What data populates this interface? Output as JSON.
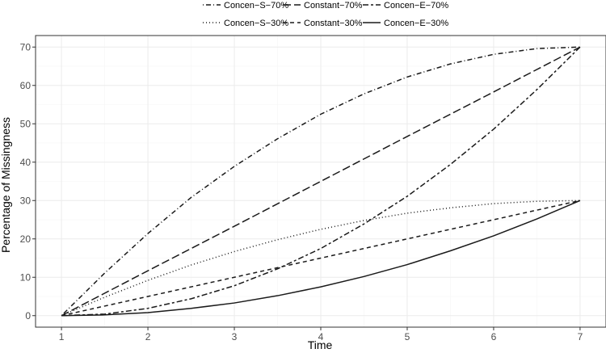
{
  "chart_data": {
    "type": "line",
    "xlabel": "Time",
    "ylabel": "Percentage of Missingness",
    "xlim": [
      0.7,
      7.3
    ],
    "ylim": [
      -3,
      73
    ],
    "x_ticks": [
      1,
      2,
      3,
      4,
      5,
      6,
      7
    ],
    "y_ticks": [
      0,
      10,
      20,
      30,
      40,
      50,
      60,
      70
    ],
    "grid": true,
    "legend_position": "top",
    "series": [
      {
        "name": "Concen−S−70%",
        "dash": "dotdash",
        "x": [
          1,
          1.5,
          2,
          2.5,
          3,
          3.5,
          4,
          4.5,
          5,
          5.5,
          6,
          6.5,
          7
        ],
        "y": [
          0,
          11.1,
          21.4,
          30.8,
          38.9,
          46.1,
          52.5,
          57.8,
          62.2,
          65.6,
          68.1,
          69.6,
          70
        ]
      },
      {
        "name": "Constant−70%",
        "dash": "longdash",
        "x": [
          1,
          2,
          3,
          4,
          5,
          6,
          7
        ],
        "y": [
          0,
          11.7,
          23.3,
          35.0,
          46.7,
          58.3,
          70
        ]
      },
      {
        "name": "Concen−E−70%",
        "dash": "twodash",
        "x": [
          1,
          1.5,
          2,
          2.5,
          3,
          3.5,
          4,
          4.5,
          5,
          5.5,
          6,
          6.5,
          7
        ],
        "y": [
          0,
          0.4,
          1.9,
          4.4,
          7.8,
          12.2,
          17.5,
          23.9,
          31.1,
          39.4,
          48.6,
          58.9,
          70
        ]
      },
      {
        "name": "Concen−S−30%",
        "dash": "dotted",
        "x": [
          1,
          1.5,
          2,
          2.5,
          3,
          3.5,
          4,
          4.5,
          5,
          5.5,
          6,
          6.5,
          7
        ],
        "y": [
          0,
          4.8,
          9.2,
          13.2,
          16.7,
          19.8,
          22.5,
          24.8,
          26.7,
          28.1,
          29.2,
          29.8,
          30
        ]
      },
      {
        "name": "Constant−30%",
        "dash": "dashed",
        "x": [
          1,
          2,
          3,
          4,
          5,
          6,
          7
        ],
        "y": [
          0,
          5,
          10,
          15,
          20,
          25,
          30
        ]
      },
      {
        "name": "Concen−E−30%",
        "dash": "solid",
        "x": [
          1,
          1.5,
          2,
          2.5,
          3,
          3.5,
          4,
          4.5,
          5,
          5.5,
          6,
          6.5,
          7
        ],
        "y": [
          0,
          0.2,
          0.8,
          1.9,
          3.3,
          5.2,
          7.5,
          10.2,
          13.3,
          16.9,
          20.8,
          25.2,
          30
        ]
      }
    ]
  }
}
